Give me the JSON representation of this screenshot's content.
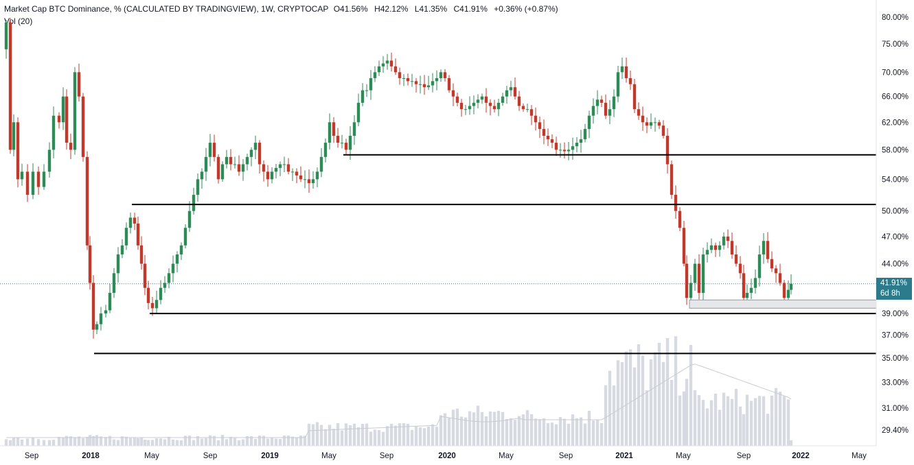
{
  "header": {
    "title": "Market Cap BTC Dominance, % (CALCULATED BY TRADINGVIEW), 1W, CRYPTOCAP",
    "open": "O41.56%",
    "high": "H42.12%",
    "low": "L41.35%",
    "close": "C41.91%",
    "change": "+0.36% (+0.87%)",
    "volume_label": "Vol (20)"
  },
  "last_price": {
    "value": "41.91%",
    "countdown": "6d 8h"
  },
  "colors": {
    "up": "#26a69a",
    "down": "#ef5350",
    "up_candle": "#2e8b57",
    "down_candle": "#c0392b",
    "volume": "#d1d4dc",
    "axis_text": "#131722",
    "level_line": "#000000",
    "last_price_badge": "#2b7b8c"
  },
  "chart_data": {
    "type": "candlestick",
    "y_axis": {
      "ticks": [
        "80.00%",
        "75.00%",
        "70.00%",
        "66.00%",
        "62.00%",
        "58.00%",
        "54.00%",
        "50.00%",
        "47.00%",
        "44.00%",
        "39.00%",
        "37.00%",
        "35.00%",
        "33.00%",
        "31.00%",
        "29.40%"
      ],
      "tick_values": [
        80,
        75,
        70,
        66,
        62,
        58,
        54,
        50,
        47,
        44,
        39,
        37,
        35,
        33,
        31,
        29.4
      ],
      "scale": "log",
      "ylim": [
        28.6,
        82.5
      ]
    },
    "x_axis": {
      "ticks": [
        "Sep",
        "2018",
        "May",
        "Sep",
        "2019",
        "May",
        "Sep",
        "2020",
        "May",
        "Sep",
        "2021",
        "May",
        "Sep",
        "2022",
        "May"
      ],
      "bold": [
        false,
        true,
        false,
        false,
        true,
        false,
        false,
        true,
        false,
        false,
        true,
        false,
        false,
        true,
        false
      ]
    },
    "horizontal_levels": [
      57.3,
      50.8,
      39.0,
      35.4
    ],
    "support_zone": [
      39.5,
      40.3
    ],
    "last_value": 41.91,
    "last_change": "+0.36%"
  }
}
